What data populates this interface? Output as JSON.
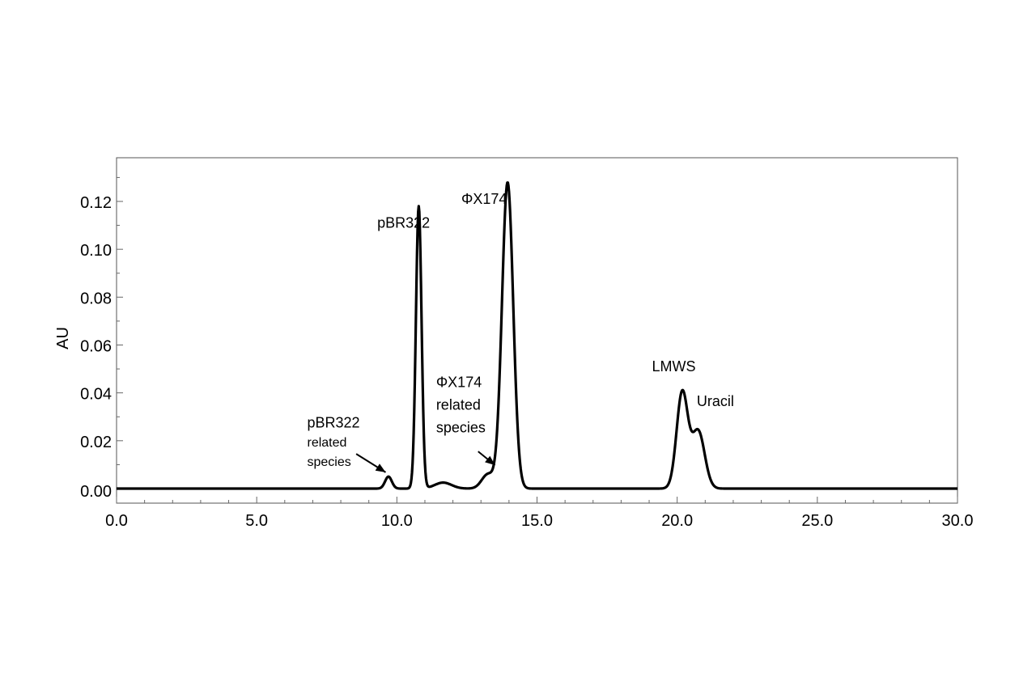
{
  "chart_data": {
    "type": "line",
    "title": "",
    "xlabel": "",
    "ylabel": "AU",
    "xlim": [
      0.0,
      30.0
    ],
    "ylim": [
      0.0,
      0.13
    ],
    "grid": false,
    "x_ticks": [
      0.0,
      5.0,
      10.0,
      15.0,
      20.0,
      25.0,
      30.0
    ],
    "x_tick_labels": [
      "0.0",
      "5.0",
      "10.0",
      "15.0",
      "20.0",
      "25.0",
      "30.0"
    ],
    "y_ticks": [
      0.0,
      0.02,
      0.04,
      0.06,
      0.08,
      0.1,
      0.12
    ],
    "y_tick_labels": [
      "0.00",
      "0.02",
      "0.04",
      "0.06",
      "0.08",
      "0.10",
      "0.12"
    ],
    "series": [
      {
        "color": "#000000",
        "peaks": [
          {
            "center": 9.7,
            "height": 0.005,
            "width": 0.12
          },
          {
            "center": 10.78,
            "height": 0.118,
            "width": 0.1
          },
          {
            "center": 11.65,
            "height": 0.0025,
            "width": 0.3
          },
          {
            "center": 13.25,
            "height": 0.006,
            "width": 0.22
          },
          {
            "center": 13.95,
            "height": 0.128,
            "width": 0.2
          },
          {
            "center": 20.18,
            "height": 0.04,
            "width": 0.2
          },
          {
            "center": 20.75,
            "height": 0.024,
            "width": 0.23
          }
        ],
        "baseline": 0.0
      }
    ],
    "annotations": [
      {
        "lines": [
          "pBR322"
        ],
        "x": 9.3,
        "y": 0.109,
        "size": "normal"
      },
      {
        "lines": [
          "ΦX174"
        ],
        "x": 12.3,
        "y": 0.119,
        "size": "normal"
      },
      {
        "lines": [
          "pBR322"
        ],
        "x": 6.8,
        "y": 0.0255,
        "size": "normal"
      },
      {
        "lines": [
          "related",
          "species"
        ],
        "x": 6.8,
        "y": 0.0175,
        "size": "small"
      },
      {
        "lines": [
          "ΦX174",
          "related",
          "species"
        ],
        "x": 11.4,
        "y": 0.0425,
        "size": "normal"
      },
      {
        "lines": [
          "LMWS"
        ],
        "x": 19.1,
        "y": 0.049,
        "size": "normal"
      },
      {
        "lines": [
          "Uracil"
        ],
        "x": 20.7,
        "y": 0.0345,
        "size": "normal"
      }
    ],
    "arrows": [
      {
        "from": [
          8.55,
          0.0145
        ],
        "to": [
          9.6,
          0.0068
        ]
      },
      {
        "from": [
          12.9,
          0.0155
        ],
        "to": [
          13.5,
          0.0098
        ]
      }
    ]
  }
}
